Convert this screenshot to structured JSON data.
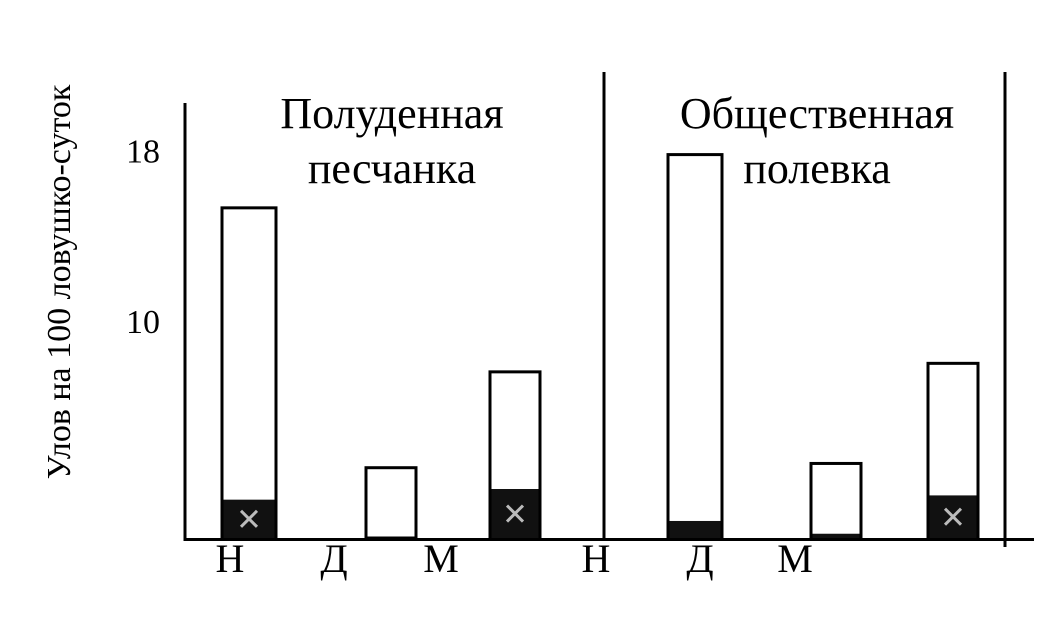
{
  "chart_data": {
    "type": "bar",
    "title": "",
    "xlabel": "",
    "ylabel": "Улов на 100 ловушко-суток",
    "ylim": [
      0,
      18
    ],
    "y_ticks": [
      10,
      18
    ],
    "x_tick_labels": [
      "Н",
      "Д",
      "М",
      "Н",
      "Д",
      "М"
    ],
    "grid": false,
    "legend": "none",
    "colors": {
      "bar_fill": "#ffffff",
      "inner_fill": "#111111",
      "marker": "#bbbbbb",
      "axis": "#000000"
    },
    "panels": [
      {
        "label_lines": [
          "Полуденная",
          "песчанка"
        ],
        "bars": [
          {
            "value": 15.5,
            "inner": 1.8,
            "marker": true
          },
          {
            "value": 3.3,
            "inner": 0,
            "marker": false
          },
          {
            "value": 7.8,
            "inner": 2.3,
            "marker": true
          }
        ]
      },
      {
        "label_lines": [
          "Общественная",
          "полевка"
        ],
        "bars": [
          {
            "value": 18.0,
            "inner": 0.8,
            "marker": false
          },
          {
            "value": 3.5,
            "inner": 0.2,
            "marker": false
          },
          {
            "value": 8.2,
            "inner": 2.0,
            "marker": true
          }
        ]
      }
    ]
  }
}
